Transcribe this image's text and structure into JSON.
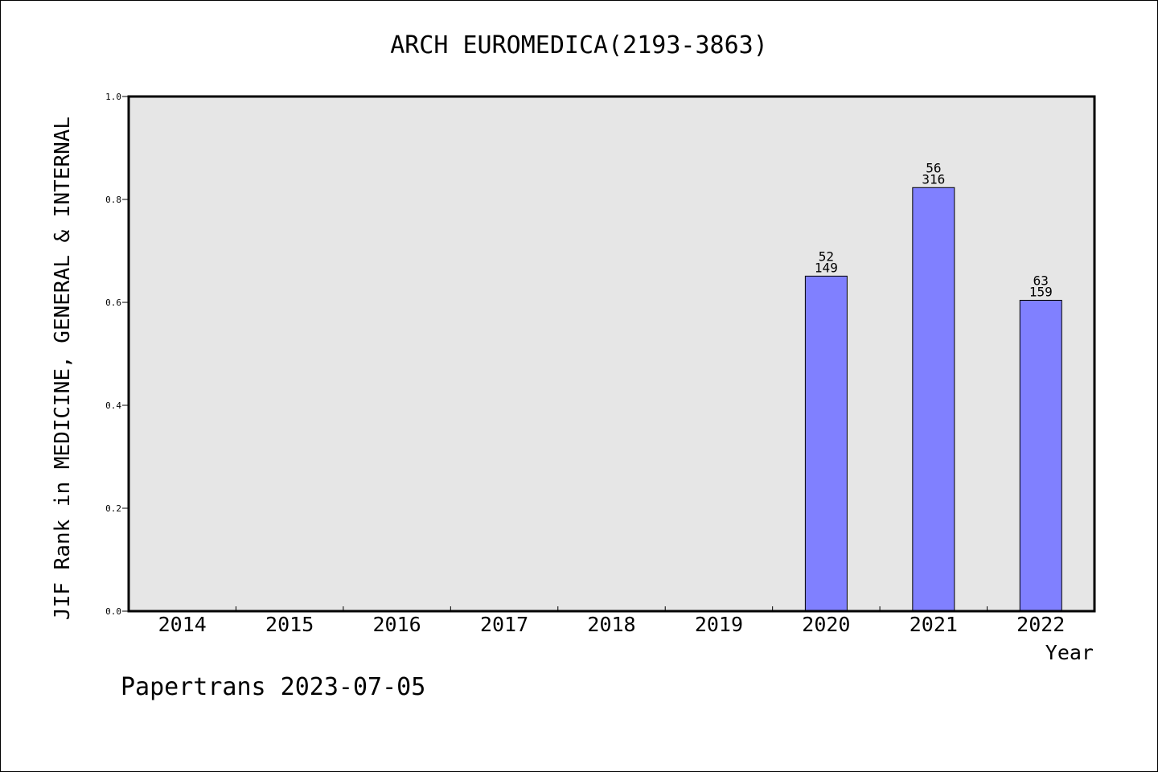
{
  "chart_data": {
    "type": "bar",
    "title": "ARCH EUROMEDICA(2193-3863)",
    "xlabel": "Year",
    "ylabel": "JIF Rank in MEDICINE, GENERAL & INTERNAL",
    "categories": [
      "2014",
      "2015",
      "2016",
      "2017",
      "2018",
      "2019",
      "2020",
      "2021",
      "2022"
    ],
    "values": [
      null,
      null,
      null,
      null,
      null,
      null,
      0.651,
      0.823,
      0.604
    ],
    "rank_labels": [
      null,
      null,
      null,
      null,
      null,
      null,
      {
        "rank": "52",
        "total": "149"
      },
      {
        "rank": "56",
        "total": "316"
      },
      {
        "rank": "63",
        "total": "159"
      }
    ],
    "ylim": [
      0,
      1.0
    ],
    "yticks": [
      "0.0",
      "0.2",
      "0.4",
      "0.6",
      "0.8",
      "1.0"
    ],
    "ytick_values": [
      0,
      0.2,
      0.4,
      0.6,
      0.8,
      1.0
    ],
    "grid": false,
    "legend": "none",
    "colors": {
      "bar_fill": "#8080ff",
      "plot_background": "#e6e6e6",
      "axis": "#000000"
    }
  },
  "footer": {
    "text": "Papertrans 2023-07-05"
  }
}
